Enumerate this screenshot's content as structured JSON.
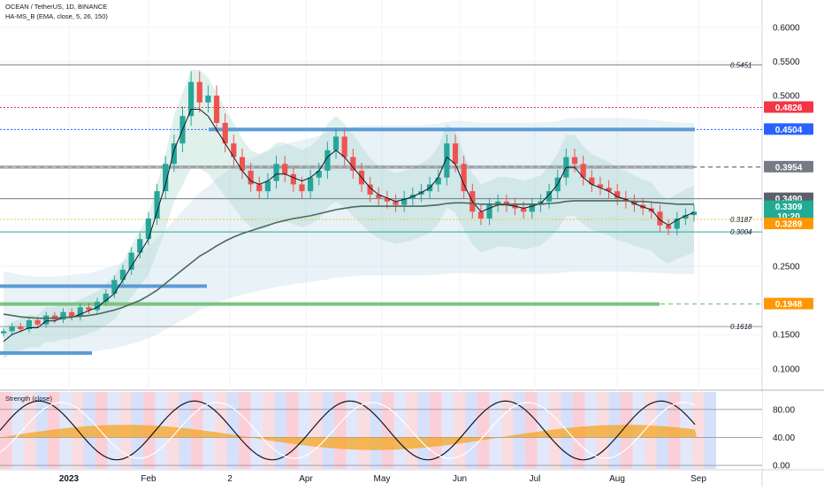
{
  "chart_data": {
    "type": "candlestick",
    "title": "OCEAN / TetherUS, 1D, BINANCE",
    "indicator_label": "HA-MS_B (EMA, close, 5, 26, 150)",
    "y_ticks": [
      "0.6000",
      "0.5500",
      "0.5000",
      "0.4500",
      "0.3500",
      "0.2500",
      "0.1500",
      "0.1000"
    ],
    "x_ticks": [
      "2023",
      "Feb",
      "2",
      "Apr",
      "May",
      "Jun",
      "Jul",
      "Aug",
      "Sep"
    ],
    "price_labels": [
      {
        "name": "red",
        "value": "0.4826",
        "color": "#f23645"
      },
      {
        "name": "blue",
        "value": "0.4504",
        "color": "#2962ff"
      },
      {
        "name": "gray-dark",
        "value": "0.3954",
        "color": "#787b86"
      },
      {
        "name": "current-bg",
        "value": "0.3490",
        "color": "#5d606b"
      },
      {
        "name": "last",
        "value": "0.3309",
        "color": "#22ab94"
      },
      {
        "name": "countdown",
        "value": "10:20",
        "color": "#22ab94"
      },
      {
        "name": "orange",
        "value": "0.3289",
        "color": "#ff9800"
      },
      {
        "name": "orange-low",
        "value": "0.1948",
        "color": "#ff9800"
      }
    ],
    "line_labels": [
      "0.5451",
      "0.3187",
      "0.3004",
      "0.1618"
    ],
    "candles_close": [
      0.155,
      0.162,
      0.158,
      0.171,
      0.165,
      0.178,
      0.172,
      0.183,
      0.176,
      0.19,
      0.186,
      0.198,
      0.21,
      0.23,
      0.245,
      0.27,
      0.29,
      0.32,
      0.36,
      0.4,
      0.43,
      0.47,
      0.52,
      0.49,
      0.5,
      0.46,
      0.43,
      0.41,
      0.39,
      0.37,
      0.36,
      0.375,
      0.4,
      0.385,
      0.37,
      0.36,
      0.38,
      0.39,
      0.42,
      0.44,
      0.41,
      0.39,
      0.37,
      0.355,
      0.35,
      0.345,
      0.34,
      0.35,
      0.355,
      0.36,
      0.37,
      0.38,
      0.43,
      0.4,
      0.36,
      0.33,
      0.32,
      0.34,
      0.345,
      0.34,
      0.335,
      0.33,
      0.34,
      0.345,
      0.36,
      0.38,
      0.41,
      0.4,
      0.38,
      0.37,
      0.365,
      0.36,
      0.35,
      0.345,
      0.34,
      0.335,
      0.33,
      0.31,
      0.305,
      0.32,
      0.325,
      0.33
    ],
    "series": [
      {
        "name": "",
        "values": [
          0.14,
          0.15,
          0.155,
          0.16,
          0.16,
          0.17,
          0.17,
          0.175,
          0.175,
          0.18,
          0.185,
          0.19,
          0.2,
          0.21,
          0.23,
          0.25,
          0.27,
          0.29,
          0.33,
          0.37,
          0.42,
          0.45,
          0.48,
          0.48,
          0.47,
          0.45,
          0.43,
          0.41,
          0.39,
          0.375,
          0.37,
          0.375,
          0.385,
          0.385,
          0.38,
          0.375,
          0.38,
          0.39,
          0.41,
          0.42,
          0.41,
          0.395,
          0.38,
          0.365,
          0.355,
          0.35,
          0.345,
          0.348,
          0.352,
          0.358,
          0.365,
          0.38,
          0.41,
          0.4,
          0.37,
          0.345,
          0.33,
          0.335,
          0.34,
          0.34,
          0.338,
          0.335,
          0.338,
          0.342,
          0.355,
          0.37,
          0.395,
          0.395,
          0.38,
          0.37,
          0.365,
          0.36,
          0.352,
          0.348,
          0.342,
          0.337,
          0.333,
          0.318,
          0.31,
          0.318,
          0.324,
          0.329
        ]
      },
      {
        "name": "",
        "values": [
          0.18,
          0.178,
          0.176,
          0.175,
          0.174,
          0.174,
          0.174,
          0.175,
          0.176,
          0.177,
          0.178,
          0.18,
          0.183,
          0.186,
          0.19,
          0.195,
          0.2,
          0.207,
          0.215,
          0.225,
          0.235,
          0.245,
          0.255,
          0.265,
          0.272,
          0.28,
          0.287,
          0.293,
          0.298,
          0.302,
          0.306,
          0.31,
          0.314,
          0.317,
          0.32,
          0.322,
          0.324,
          0.327,
          0.33,
          0.333,
          0.335,
          0.337,
          0.338,
          0.338,
          0.338,
          0.338,
          0.338,
          0.338,
          0.338,
          0.338,
          0.339,
          0.34,
          0.342,
          0.343,
          0.343,
          0.342,
          0.341,
          0.341,
          0.341,
          0.341,
          0.341,
          0.341,
          0.341,
          0.341,
          0.342,
          0.343,
          0.345,
          0.346,
          0.346,
          0.346,
          0.346,
          0.346,
          0.346,
          0.346,
          0.345,
          0.345,
          0.344,
          0.343,
          0.342,
          0.341,
          0.341,
          0.341
        ]
      }
    ],
    "horizontal_levels": [
      {
        "name": "gray",
        "value": 0.5451
      },
      {
        "name": "red",
        "value": 0.4826
      },
      {
        "name": "blue",
        "value": 0.4504
      },
      {
        "name": "gray-dark",
        "value": 0.3954
      },
      {
        "name": "gray-mid",
        "value": 0.349
      },
      {
        "name": "yellow",
        "value": 0.3187
      },
      {
        "name": "green-small",
        "value": 0.3004
      },
      {
        "name": "green",
        "value": 0.1948
      },
      {
        "name": "gray-low",
        "value": 0.1618
      }
    ],
    "oscillator": {
      "label": "Strength (close)",
      "y_ticks": [
        "80.00",
        "40.00",
        "0.00"
      ]
    },
    "colors": {
      "up": "#26a69a",
      "down": "#ef5350",
      "bg": "#ffffff",
      "grid": "#eef0f3"
    }
  }
}
